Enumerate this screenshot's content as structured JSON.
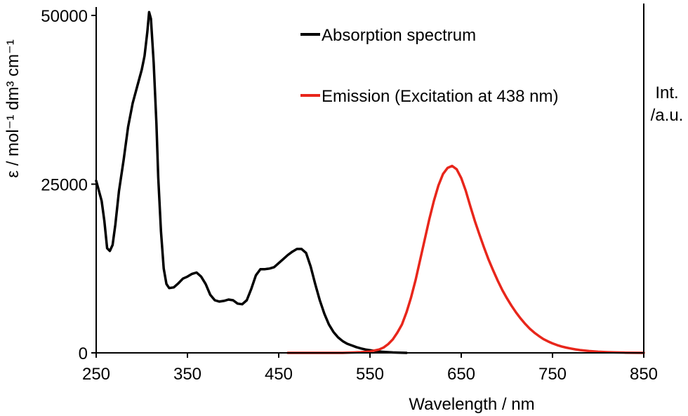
{
  "chart_data": {
    "type": "line",
    "xlabel": "Wavelength / nm",
    "ylabel": "ε / mol⁻¹ dm³ cm⁻¹",
    "y2label_line1": "Int.",
    "y2label_line2": "/a.u.",
    "xlim": [
      250,
      850
    ],
    "ylim": [
      0,
      50000
    ],
    "xticks": [
      "250",
      "350",
      "450",
      "550",
      "650",
      "750",
      "850"
    ],
    "yticks": [
      "0",
      "25000",
      "50000"
    ],
    "grid": false,
    "legend_position": "top-center",
    "series": [
      {
        "name": "Absorption spectrum",
        "color": "#000000",
        "points": [
          [
            250,
            25500
          ],
          [
            253,
            24000
          ],
          [
            256,
            22500
          ],
          [
            259,
            19500
          ],
          [
            262,
            15500
          ],
          [
            265,
            15100
          ],
          [
            268,
            16000
          ],
          [
            271,
            19000
          ],
          [
            275,
            24000
          ],
          [
            280,
            28500
          ],
          [
            285,
            33500
          ],
          [
            290,
            37000
          ],
          [
            295,
            39500
          ],
          [
            300,
            42000
          ],
          [
            303,
            44000
          ],
          [
            306,
            47500
          ],
          [
            308,
            50500
          ],
          [
            310,
            49500
          ],
          [
            313,
            43000
          ],
          [
            316,
            34000
          ],
          [
            318,
            26000
          ],
          [
            321,
            18000
          ],
          [
            324,
            12500
          ],
          [
            327,
            10200
          ],
          [
            330,
            9600
          ],
          [
            335,
            9700
          ],
          [
            340,
            10300
          ],
          [
            345,
            11000
          ],
          [
            350,
            11300
          ],
          [
            355,
            11700
          ],
          [
            360,
            11900
          ],
          [
            365,
            11300
          ],
          [
            370,
            10200
          ],
          [
            375,
            8600
          ],
          [
            380,
            7800
          ],
          [
            385,
            7600
          ],
          [
            390,
            7700
          ],
          [
            395,
            7900
          ],
          [
            400,
            7800
          ],
          [
            405,
            7300
          ],
          [
            410,
            7200
          ],
          [
            415,
            7800
          ],
          [
            420,
            9500
          ],
          [
            425,
            11500
          ],
          [
            430,
            12400
          ],
          [
            435,
            12400
          ],
          [
            440,
            12500
          ],
          [
            445,
            12700
          ],
          [
            450,
            13300
          ],
          [
            455,
            13900
          ],
          [
            460,
            14500
          ],
          [
            465,
            15000
          ],
          [
            470,
            15400
          ],
          [
            475,
            15400
          ],
          [
            480,
            14800
          ],
          [
            485,
            12800
          ],
          [
            490,
            10200
          ],
          [
            495,
            7800
          ],
          [
            500,
            5800
          ],
          [
            505,
            4200
          ],
          [
            510,
            3100
          ],
          [
            515,
            2300
          ],
          [
            520,
            1750
          ],
          [
            525,
            1350
          ],
          [
            530,
            1100
          ],
          [
            535,
            850
          ],
          [
            540,
            650
          ],
          [
            545,
            500
          ],
          [
            550,
            400
          ],
          [
            555,
            300
          ],
          [
            560,
            200
          ],
          [
            565,
            150
          ],
          [
            570,
            100
          ],
          [
            575,
            60
          ],
          [
            580,
            40
          ],
          [
            590,
            0
          ]
        ]
      },
      {
        "name": "Emission (Excitation at 438 nm)",
        "color": "#e8261b",
        "points": [
          [
            460,
            0
          ],
          [
            520,
            0
          ],
          [
            540,
            100
          ],
          [
            550,
            200
          ],
          [
            560,
            500
          ],
          [
            565,
            800
          ],
          [
            570,
            1300
          ],
          [
            575,
            2000
          ],
          [
            580,
            3000
          ],
          [
            585,
            4200
          ],
          [
            590,
            6000
          ],
          [
            595,
            8200
          ],
          [
            600,
            10800
          ],
          [
            605,
            13800
          ],
          [
            610,
            16800
          ],
          [
            615,
            19800
          ],
          [
            620,
            22500
          ],
          [
            625,
            24800
          ],
          [
            630,
            26500
          ],
          [
            635,
            27400
          ],
          [
            640,
            27700
          ],
          [
            645,
            27200
          ],
          [
            650,
            25900
          ],
          [
            655,
            24000
          ],
          [
            660,
            21700
          ],
          [
            665,
            19500
          ],
          [
            670,
            17500
          ],
          [
            675,
            15600
          ],
          [
            680,
            13800
          ],
          [
            685,
            12200
          ],
          [
            690,
            10700
          ],
          [
            695,
            9300
          ],
          [
            700,
            8100
          ],
          [
            705,
            7000
          ],
          [
            710,
            6000
          ],
          [
            715,
            5100
          ],
          [
            720,
            4300
          ],
          [
            725,
            3600
          ],
          [
            730,
            3000
          ],
          [
            735,
            2500
          ],
          [
            740,
            2050
          ],
          [
            745,
            1700
          ],
          [
            750,
            1400
          ],
          [
            755,
            1150
          ],
          [
            760,
            950
          ],
          [
            765,
            780
          ],
          [
            770,
            640
          ],
          [
            775,
            520
          ],
          [
            780,
            420
          ],
          [
            790,
            270
          ],
          [
            800,
            170
          ],
          [
            810,
            100
          ],
          [
            820,
            60
          ],
          [
            830,
            30
          ],
          [
            850,
            0
          ]
        ]
      }
    ]
  }
}
